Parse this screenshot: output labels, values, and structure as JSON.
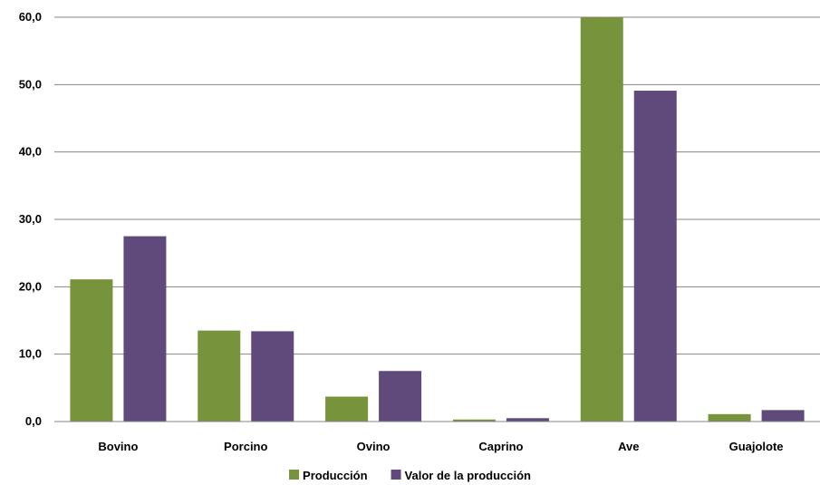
{
  "chart_data": {
    "type": "bar",
    "title": "",
    "xlabel": "",
    "ylabel": "",
    "categories": [
      "Bovino",
      "Porcino",
      "Ovino",
      "Caprino",
      "Ave",
      "Guajolote"
    ],
    "series": [
      {
        "name": "Producción",
        "color": "#77933c",
        "values": [
          21.1,
          13.5,
          3.7,
          0.3,
          60.0,
          1.1
        ]
      },
      {
        "name": "Valor de la producción",
        "color": "#604a7b",
        "values": [
          27.5,
          13.4,
          7.5,
          0.5,
          49.1,
          1.7
        ]
      }
    ],
    "ylim": [
      0,
      60
    ],
    "yticks": [
      "0,0",
      "10,0",
      "20,0",
      "30,0",
      "40,0",
      "50,0",
      "60,0"
    ],
    "grid": true,
    "legend_position": "bottom-center"
  }
}
